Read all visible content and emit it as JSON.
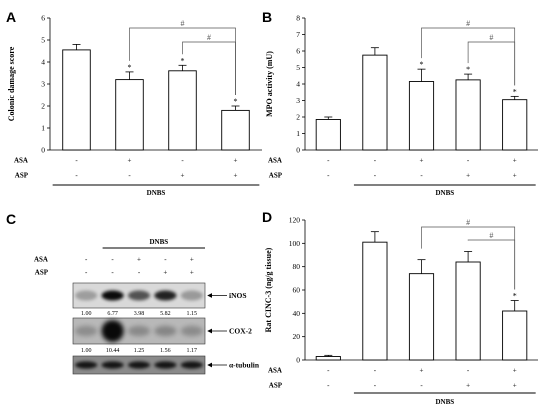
{
  "chart_data": [
    {
      "panel": "A",
      "type": "bar",
      "ylabel": "Colonic damage score",
      "ylim": [
        0,
        6
      ],
      "yticks": [
        0,
        1,
        2,
        3,
        4,
        5,
        6
      ],
      "groups": 4,
      "values": [
        4.55,
        3.2,
        3.6,
        1.8
      ],
      "errors": [
        0.25,
        0.35,
        0.25,
        0.2
      ],
      "asterisks": [
        "",
        "*",
        "*",
        "*"
      ],
      "treatment_rows": [
        {
          "label": "ASA",
          "marks": [
            "-",
            "+",
            "-",
            "+"
          ]
        },
        {
          "label": "ASP",
          "marks": [
            "-",
            "-",
            "+",
            "+"
          ]
        }
      ],
      "group_label": "DNBS",
      "group_span": [
        0,
        3
      ],
      "significance": [
        {
          "from": 1,
          "to": 3,
          "label": "#"
        },
        {
          "from": 2,
          "to": 3,
          "label": "#"
        }
      ]
    },
    {
      "panel": "B",
      "type": "bar",
      "ylabel": "MPO activity (mU)",
      "ylim": [
        0,
        8
      ],
      "yticks": [
        0,
        1,
        2,
        3,
        4,
        5,
        6,
        7,
        8
      ],
      "groups": 5,
      "values": [
        1.85,
        5.75,
        4.15,
        4.25,
        3.05
      ],
      "errors": [
        0.15,
        0.45,
        0.75,
        0.35,
        0.2
      ],
      "asterisks": [
        "",
        "",
        "*",
        "*",
        "*"
      ],
      "treatment_rows": [
        {
          "label": "ASA",
          "marks": [
            "-",
            "-",
            "+",
            "-",
            "+"
          ]
        },
        {
          "label": "ASP",
          "marks": [
            "-",
            "-",
            "-",
            "+",
            "+"
          ]
        }
      ],
      "group_label": "DNBS",
      "group_span": [
        1,
        4
      ],
      "significance": [
        {
          "from": 2,
          "to": 4,
          "label": "#"
        },
        {
          "from": 3,
          "to": 4,
          "label": "#"
        }
      ]
    },
    {
      "panel": "D",
      "type": "bar",
      "ylabel": "Rat CINC-3 (ng/g tissue)",
      "ylim": [
        0,
        120
      ],
      "yticks": [
        0,
        20,
        40,
        60,
        80,
        100,
        120
      ],
      "groups": 5,
      "values": [
        3,
        101,
        74,
        84,
        42
      ],
      "errors": [
        1,
        9,
        12,
        9,
        9
      ],
      "asterisks": [
        "",
        "",
        "",
        "",
        "*"
      ],
      "treatment_rows": [
        {
          "label": "ASA",
          "marks": [
            "-",
            "-",
            "+",
            "-",
            "+"
          ]
        },
        {
          "label": "ASP",
          "marks": [
            "-",
            "-",
            "-",
            "+",
            "+"
          ]
        }
      ],
      "group_label": "DNBS",
      "group_span": [
        1,
        4
      ],
      "significance": [
        {
          "from": 2,
          "to": 4,
          "label": "#"
        },
        {
          "from": 3,
          "to": 4,
          "label": "#"
        }
      ]
    }
  ],
  "blot": {
    "panel": "C",
    "type": "table",
    "header": "DNBS",
    "lane_count": 5,
    "treatment_rows": [
      {
        "label": "ASA",
        "marks": [
          "-",
          "-",
          "+",
          "-",
          "+"
        ]
      },
      {
        "label": "ASP",
        "marks": [
          "-",
          "-",
          "-",
          "+",
          "+"
        ]
      }
    ],
    "bands": [
      {
        "label": "iNOS",
        "densities": [
          "1.00",
          "6.77",
          "3.98",
          "5.82",
          "1.15"
        ]
      },
      {
        "label": "COX-2",
        "densities": [
          "1.00",
          "10.44",
          "1.25",
          "1.56",
          "1.17"
        ]
      },
      {
        "label": "α-tubulin",
        "densities": []
      }
    ]
  }
}
